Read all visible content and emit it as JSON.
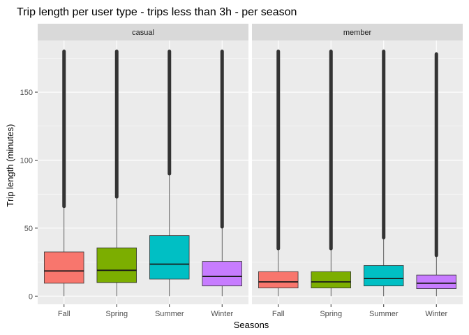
{
  "chart_data": {
    "type": "boxplot",
    "title": "Trip length per user type - trips less than 3h - per season",
    "xlabel": "Seasons",
    "ylabel": "Trip length (minutes)",
    "ylim": [
      -6,
      188
    ],
    "y_ticks": [
      0,
      50,
      100,
      150
    ],
    "categories": [
      "Fall",
      "Spring",
      "Summer",
      "Winter"
    ],
    "colors": {
      "Fall": "#F8766D",
      "Spring": "#7CAE00",
      "Summer": "#00BFC4",
      "Winter": "#C77CFF"
    },
    "grid": true,
    "legend": "none",
    "panels": [
      {
        "name": "casual",
        "boxes": [
          {
            "category": "Fall",
            "min": 0,
            "q1": 9.5,
            "median": 18.5,
            "q3": 32.5,
            "whisker_high": 66,
            "outliers_from": 66,
            "outliers_to": 180
          },
          {
            "category": "Spring",
            "min": 0,
            "q1": 10,
            "median": 19,
            "q3": 35.5,
            "whisker_high": 73,
            "outliers_from": 73,
            "outliers_to": 180
          },
          {
            "category": "Summer",
            "min": 0,
            "q1": 12.5,
            "median": 23.5,
            "q3": 44.5,
            "whisker_high": 90,
            "outliers_from": 90,
            "outliers_to": 180
          },
          {
            "category": "Winter",
            "min": 0,
            "q1": 7.5,
            "median": 14.5,
            "q3": 25.5,
            "whisker_high": 51,
            "outliers_from": 51,
            "outliers_to": 180
          }
        ]
      },
      {
        "name": "member",
        "boxes": [
          {
            "category": "Fall",
            "min": 0,
            "q1": 6,
            "median": 10.5,
            "q3": 18,
            "whisker_high": 35,
            "outliers_from": 35,
            "outliers_to": 180
          },
          {
            "category": "Spring",
            "min": 0,
            "q1": 6,
            "median": 10.5,
            "q3": 18,
            "whisker_high": 35,
            "outliers_from": 35,
            "outliers_to": 180
          },
          {
            "category": "Summer",
            "min": 0,
            "q1": 7.5,
            "median": 13,
            "q3": 22.5,
            "whisker_high": 43,
            "outliers_from": 43,
            "outliers_to": 180
          },
          {
            "category": "Winter",
            "min": 0,
            "q1": 5.5,
            "median": 9.5,
            "q3": 15.5,
            "whisker_high": 30,
            "outliers_from": 30,
            "outliers_to": 178
          }
        ]
      }
    ]
  }
}
